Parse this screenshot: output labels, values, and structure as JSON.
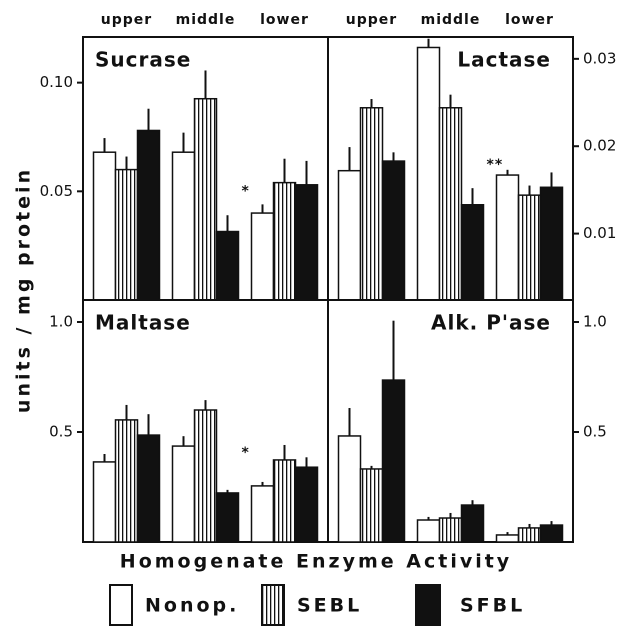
{
  "y_label": "units / mg protein",
  "x_label": "Homogenate Enzyme Activity",
  "chart_data": [
    {
      "type": "bar",
      "title": "Sucrase",
      "y_axis_side": "left",
      "annotation": "*",
      "categories": [
        "upper",
        "middle",
        "lower"
      ],
      "ylim": [
        0,
        0.121
      ],
      "yticks": [
        0.05,
        {
          "value": 0.1,
          "label": "0.10"
        }
      ],
      "series": [
        {
          "name": "Nonop.",
          "color": "#ffffff",
          "values": [
            0.068,
            0.068,
            0.04
          ],
          "errors": [
            0.0065,
            0.009,
            0.004
          ]
        },
        {
          "name": "SEBL",
          "color": "#ffffff",
          "pattern": "vertical-stripes",
          "values": [
            0.06,
            0.0926,
            0.054
          ],
          "errors": [
            0.006,
            0.013,
            0.011
          ]
        },
        {
          "name": "SFBL",
          "color": "#111111",
          "values": [
            0.078,
            0.0315,
            0.053
          ],
          "errors": [
            0.01,
            0.0075,
            0.011
          ]
        }
      ]
    },
    {
      "type": "bar",
      "title": "Lactase",
      "y_axis_side": "right",
      "annotation": "**",
      "categories": [
        "upper",
        "middle",
        "lower"
      ],
      "ylim": [
        0.0024,
        0.0325
      ],
      "yticks": [
        0.01,
        0.02,
        0.03
      ],
      "series": [
        {
          "name": "Nonop.",
          "color": "#ffffff",
          "values": [
            0.0172,
            0.0313,
            0.0167
          ],
          "errors": [
            0.0027,
            0.001,
            0.0006
          ]
        },
        {
          "name": "SEBL",
          "color": "#ffffff",
          "pattern": "vertical-stripes",
          "values": [
            0.0244,
            0.0244,
            0.0144
          ],
          "errors": [
            0.001,
            0.0015,
            0.0011
          ]
        },
        {
          "name": "SFBL",
          "color": "#111111",
          "values": [
            0.0183,
            0.0133,
            0.0153
          ],
          "errors": [
            0.001,
            0.0019,
            0.0017
          ]
        }
      ]
    },
    {
      "type": "bar",
      "title": "Maltase",
      "y_axis_side": "left",
      "annotation": "*",
      "categories": [
        null,
        null,
        null
      ],
      "ylim": [
        0,
        1.1
      ],
      "yticks": [
        0.5,
        {
          "value": 1,
          "label": "1.0"
        }
      ],
      "series": [
        {
          "name": "Nonop.",
          "color": "#ffffff",
          "values": [
            0.364,
            0.436,
            0.255
          ],
          "errors": [
            0.036,
            0.045,
            0.018
          ]
        },
        {
          "name": "SEBL",
          "color": "#ffffff",
          "pattern": "vertical-stripes",
          "values": [
            0.555,
            0.6,
            0.373
          ],
          "errors": [
            0.068,
            0.045,
            0.068
          ]
        },
        {
          "name": "SFBL",
          "color": "#111111",
          "values": [
            0.486,
            0.223,
            0.34
          ],
          "errors": [
            0.095,
            0.014,
            0.045
          ]
        }
      ]
    },
    {
      "type": "bar",
      "title": "Alk. P'ase",
      "y_axis_side": "right",
      "categories": [
        null,
        null,
        null
      ],
      "ylim": [
        0,
        1.1
      ],
      "yticks": [
        0.5,
        {
          "value": 1,
          "label": "1.0"
        }
      ],
      "series": [
        {
          "name": "Nonop.",
          "color": "#ffffff",
          "values": [
            0.482,
            0.1,
            0.032
          ],
          "errors": [
            0.127,
            0.014,
            0.013
          ]
        },
        {
          "name": "SEBL",
          "color": "#ffffff",
          "pattern": "vertical-stripes",
          "values": [
            0.332,
            0.109,
            0.064
          ],
          "errors": [
            0.014,
            0.023,
            0.018
          ]
        },
        {
          "name": "SFBL",
          "color": "#111111",
          "values": [
            0.736,
            0.168,
            0.077
          ],
          "errors": [
            0.27,
            0.022,
            0.018
          ]
        }
      ]
    }
  ]
}
